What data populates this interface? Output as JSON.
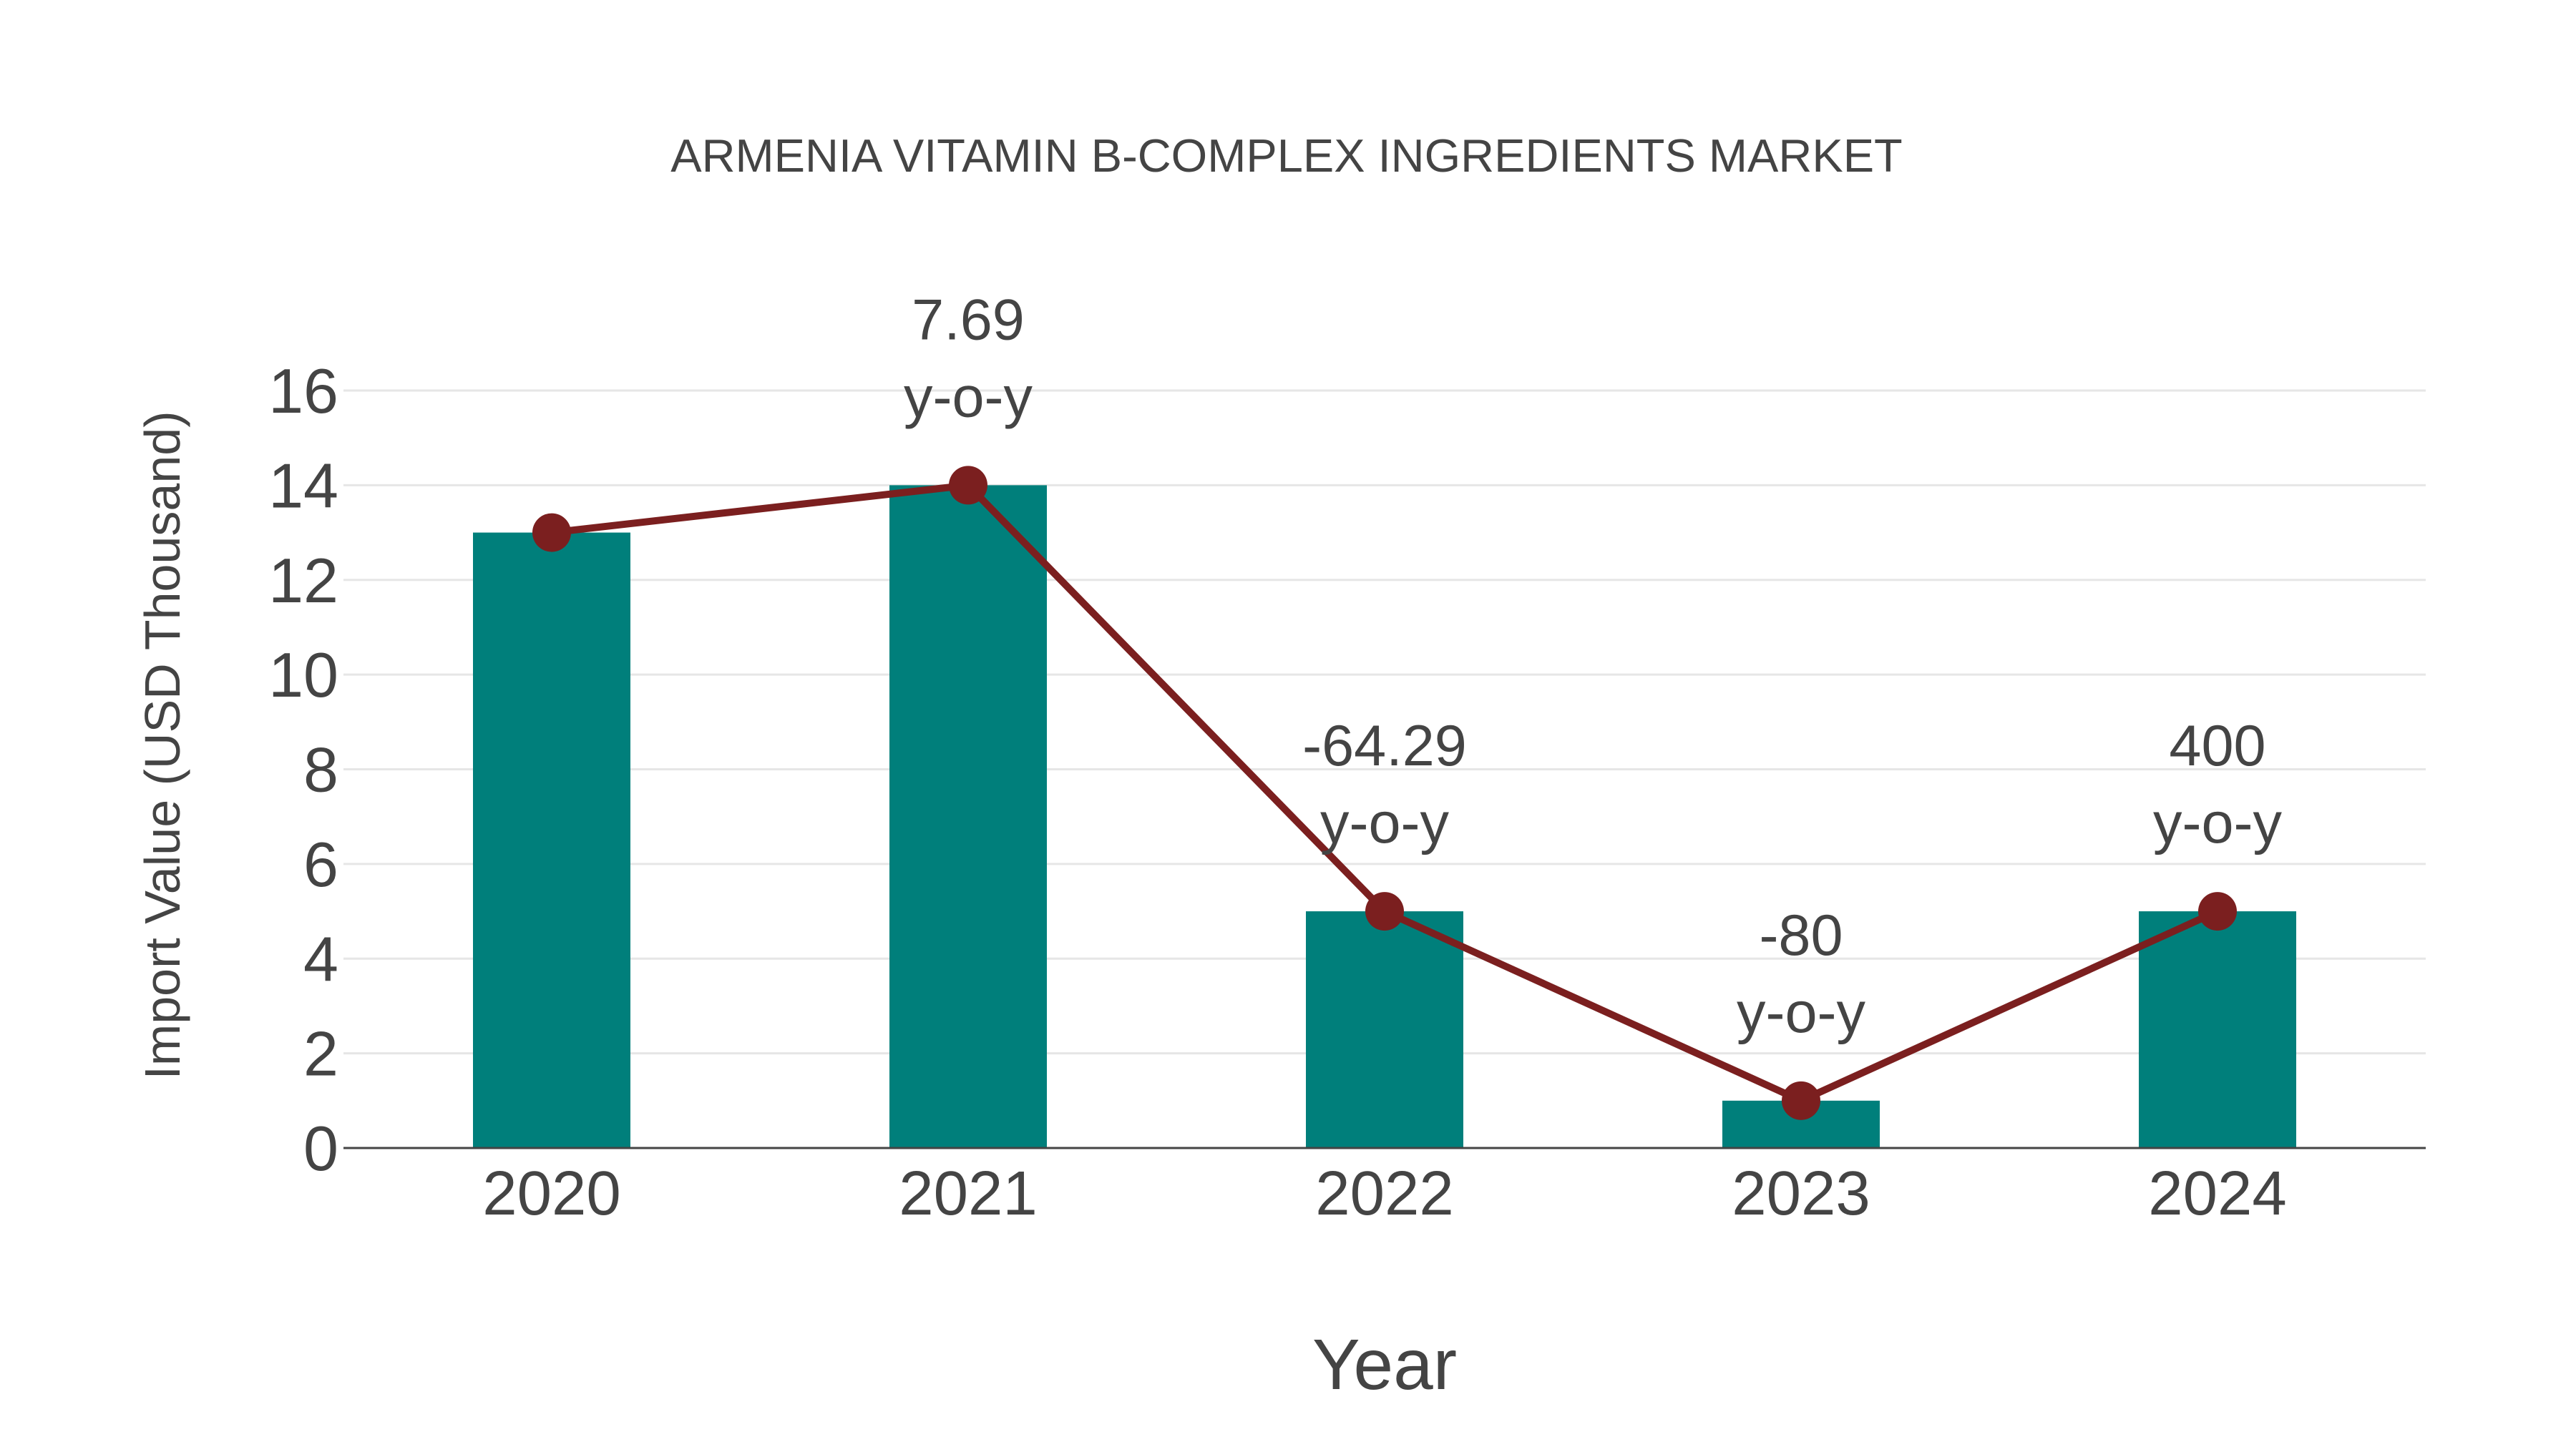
{
  "chart_data": {
    "type": "bar",
    "title": "ARMENIA VITAMIN B-COMPLEX INGREDIENTS MARKET",
    "xlabel": "Year",
    "ylabel": "Import Value (USD Thousand)",
    "categories": [
      "2020",
      "2021",
      "2022",
      "2023",
      "2024"
    ],
    "series": [
      {
        "name": "Import Value",
        "type": "bar",
        "color": "#007f7b",
        "values": [
          13,
          14,
          5,
          1,
          5
        ]
      },
      {
        "name": "Trend",
        "type": "line",
        "color": "#7b1f1f",
        "marker": "circle",
        "values": [
          13,
          14,
          5,
          1,
          5
        ]
      }
    ],
    "annotations": [
      {
        "category": "2021",
        "value": "7.69",
        "suffix": "y-o-y"
      },
      {
        "category": "2022",
        "value": "-64.29",
        "suffix": "y-o-y"
      },
      {
        "category": "2023",
        "value": "-80",
        "suffix": "y-o-y"
      },
      {
        "category": "2024",
        "value": "400",
        "suffix": "y-o-y"
      }
    ],
    "yticks": [
      0,
      2,
      4,
      6,
      8,
      10,
      12,
      14,
      16
    ],
    "ylim": [
      0,
      16
    ],
    "grid": true,
    "legend": "none"
  },
  "colors": {
    "bar": "#007f7b",
    "line": "#7b1f1f",
    "text": "#444444",
    "grid": "#e6e6e6",
    "axis": "#444444"
  }
}
